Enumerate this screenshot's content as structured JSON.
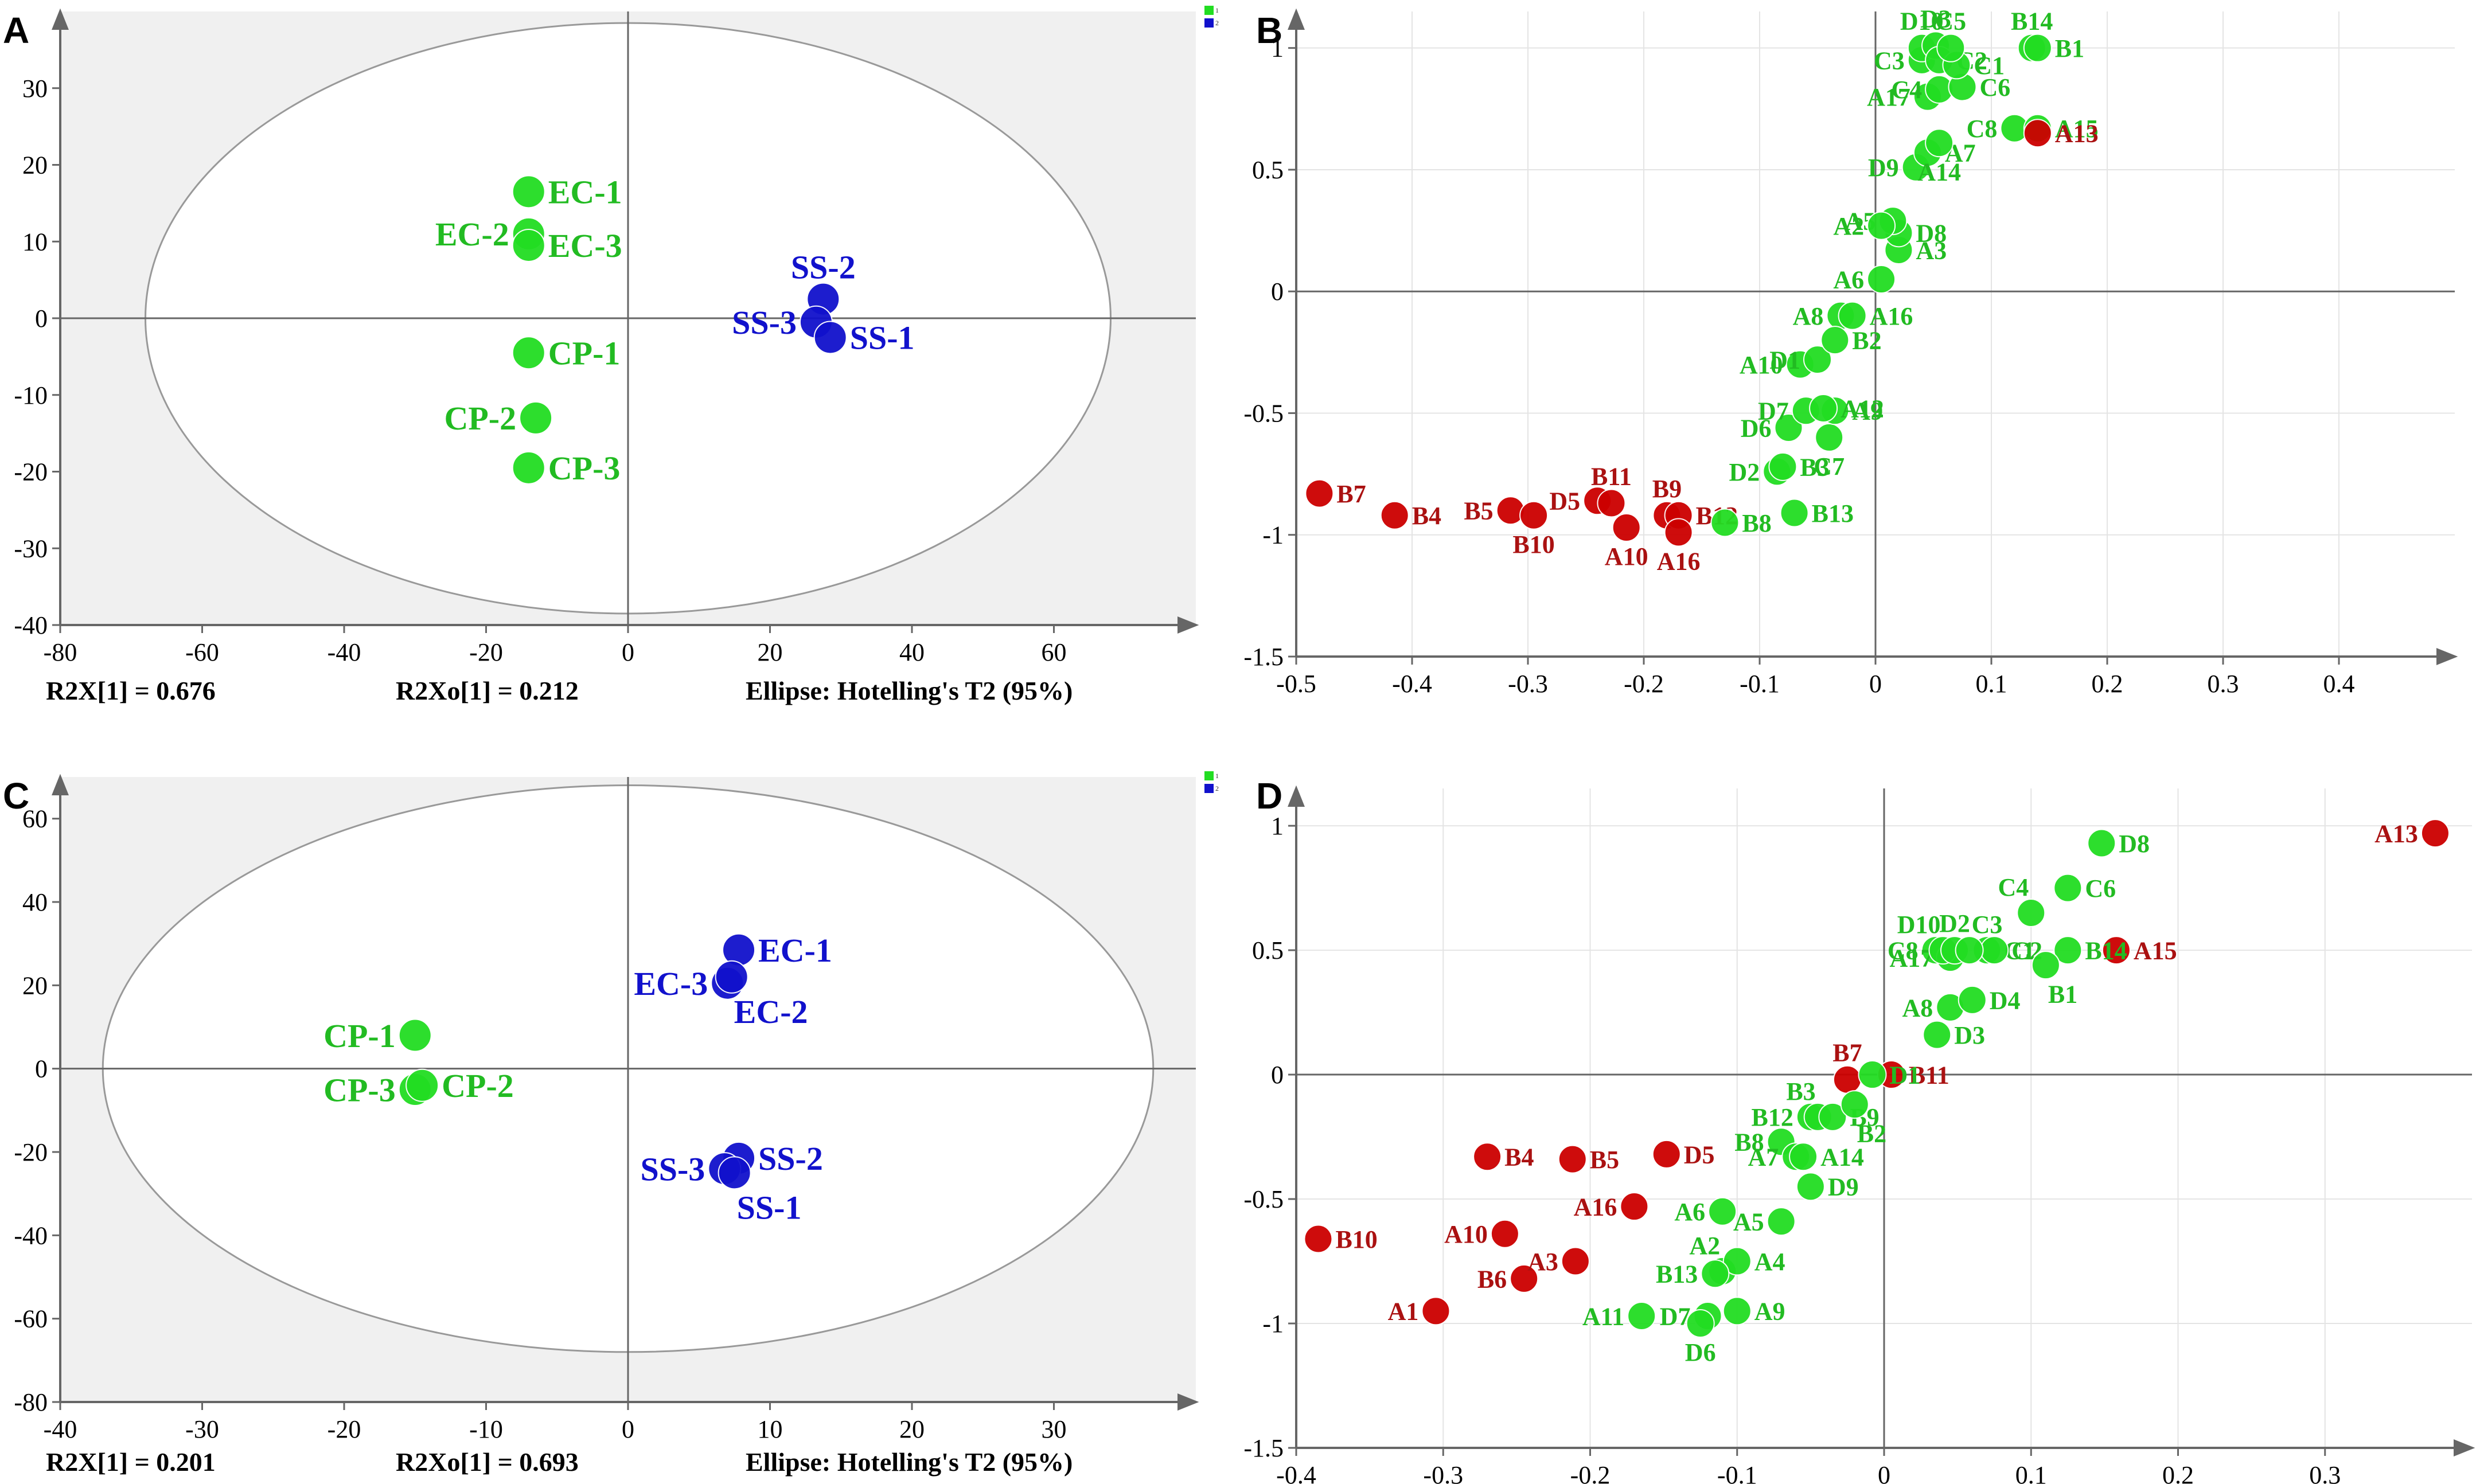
{
  "figure": {
    "panels": [
      "A",
      "B",
      "C",
      "D"
    ]
  },
  "colors": {
    "green": "#22dd22",
    "green_text": "#22bb22",
    "blue": "#1111cc",
    "red": "#cc0000",
    "red_text": "#aa1111",
    "axis": "#808080",
    "plot_bg": "#f0f0f0"
  },
  "chart_data": [
    {
      "panel": "A",
      "type": "scatter",
      "xlim": [
        -80,
        80
      ],
      "ylim": [
        -40,
        40
      ],
      "xticks": [
        -80,
        -60,
        -40,
        -20,
        0,
        20,
        40,
        60
      ],
      "yticks": [
        -40,
        -30,
        -20,
        -10,
        0,
        10,
        20,
        30
      ],
      "ellipse": {
        "cx": 0,
        "cy": 0,
        "rx": 68,
        "ry": 38.5
      },
      "legend": [
        "1",
        "2"
      ],
      "footer": [
        "R2X[1] = 0.676",
        "R2Xo[1] = 0.212",
        "Ellipse: Hotelling's T2 (95%)"
      ],
      "points": [
        {
          "label": "EC-1",
          "x": -14,
          "y": 16.5,
          "color": "green",
          "pos": "right"
        },
        {
          "label": "EC-2",
          "x": -14,
          "y": 11,
          "color": "green",
          "pos": "left"
        },
        {
          "label": "EC-3",
          "x": -14,
          "y": 9.5,
          "color": "green",
          "pos": "right"
        },
        {
          "label": "CP-1",
          "x": -14,
          "y": -4.5,
          "color": "green",
          "pos": "right"
        },
        {
          "label": "CP-2",
          "x": -13,
          "y": -13,
          "color": "green",
          "pos": "left"
        },
        {
          "label": "CP-3",
          "x": -14,
          "y": -19.5,
          "color": "green",
          "pos": "right"
        },
        {
          "label": "SS-2",
          "x": 27.5,
          "y": 2.5,
          "color": "blue",
          "pos": "above"
        },
        {
          "label": "SS-3",
          "x": 26.5,
          "y": -0.5,
          "color": "blue",
          "pos": "left"
        },
        {
          "label": "SS-1",
          "x": 28.5,
          "y": -2.5,
          "color": "blue",
          "pos": "right"
        }
      ]
    },
    {
      "panel": "B",
      "type": "scatter",
      "xlim": [
        -0.5,
        0.5
      ],
      "ylim": [
        -1.5,
        1.15
      ],
      "xticks": [
        -0.5,
        -0.4,
        -0.3,
        -0.2,
        -0.1,
        0,
        0.1,
        0.2,
        0.3,
        0.4
      ],
      "xtick_labels": [
        "-0.5",
        "-0.4",
        "-0.3",
        "-0.2",
        "-0.1",
        "0",
        "0.1",
        "0.2",
        "0.3",
        "0.4"
      ],
      "yticks": [
        -1.5,
        -1,
        -0.5,
        0,
        0.5,
        1
      ],
      "ytick_labels": [
        "-1.5",
        "-1",
        "-0.5",
        "0",
        "0.5",
        "1"
      ],
      "points": [
        {
          "label": "B7",
          "x": -0.48,
          "y": -0.83,
          "color": "red",
          "pos": "right"
        },
        {
          "label": "B4",
          "x": -0.415,
          "y": -0.92,
          "color": "red",
          "pos": "right"
        },
        {
          "label": "B5",
          "x": -0.315,
          "y": -0.9,
          "color": "red",
          "pos": "left"
        },
        {
          "label": "B10",
          "x": -0.295,
          "y": -0.92,
          "color": "red",
          "pos": "below"
        },
        {
          "label": "D5",
          "x": -0.24,
          "y": -0.86,
          "color": "red",
          "pos": "left"
        },
        {
          "label": "B11",
          "x": -0.228,
          "y": -0.87,
          "color": "red",
          "pos": "above"
        },
        {
          "label": "A10",
          "x": -0.215,
          "y": -0.97,
          "color": "red",
          "pos": "below"
        },
        {
          "label": "B9",
          "x": -0.18,
          "y": -0.92,
          "color": "red",
          "pos": "above"
        },
        {
          "label": "B12",
          "x": -0.17,
          "y": -0.92,
          "color": "red",
          "pos": "right"
        },
        {
          "label": "A16",
          "x": -0.17,
          "y": -0.99,
          "color": "red",
          "pos": "below"
        },
        {
          "label": "B8",
          "x": -0.13,
          "y": -0.95,
          "color": "green",
          "pos": "right"
        },
        {
          "label": "B13",
          "x": -0.07,
          "y": -0.91,
          "color": "green",
          "pos": "right"
        },
        {
          "label": "D2",
          "x": -0.085,
          "y": -0.74,
          "color": "green",
          "pos": "left"
        },
        {
          "label": "B3",
          "x": -0.08,
          "y": -0.72,
          "color": "green",
          "pos": "right"
        },
        {
          "label": "C7",
          "x": -0.04,
          "y": -0.6,
          "color": "green",
          "pos": "below"
        },
        {
          "label": "D6",
          "x": -0.075,
          "y": -0.56,
          "color": "green",
          "pos": "left"
        },
        {
          "label": "D7",
          "x": -0.06,
          "y": -0.49,
          "color": "green",
          "pos": "left"
        },
        {
          "label": "A9",
          "x": -0.035,
          "y": -0.49,
          "color": "green",
          "pos": "right"
        },
        {
          "label": "A12",
          "x": -0.045,
          "y": -0.48,
          "color": "green",
          "pos": "right"
        },
        {
          "label": "A10",
          "x": -0.065,
          "y": -0.3,
          "color": "green",
          "pos": "left"
        },
        {
          "label": "D1",
          "x": -0.05,
          "y": -0.28,
          "color": "green",
          "pos": "left"
        },
        {
          "label": "A8",
          "x": -0.03,
          "y": -0.1,
          "color": "green",
          "pos": "left"
        },
        {
          "label": "B2",
          "x": -0.035,
          "y": -0.2,
          "color": "green",
          "pos": "right"
        },
        {
          "label": "A16",
          "x": -0.02,
          "y": -0.1,
          "color": "green",
          "pos": "right"
        },
        {
          "label": "A6",
          "x": 0.005,
          "y": 0.05,
          "color": "green",
          "pos": "left"
        },
        {
          "label": "A3",
          "x": 0.02,
          "y": 0.17,
          "color": "green",
          "pos": "right"
        },
        {
          "label": "D8",
          "x": 0.02,
          "y": 0.24,
          "color": "green",
          "pos": "right"
        },
        {
          "label": "A5",
          "x": 0.015,
          "y": 0.29,
          "color": "green",
          "pos": "left"
        },
        {
          "label": "A2",
          "x": 0.005,
          "y": 0.27,
          "color": "green",
          "pos": "left"
        },
        {
          "label": "D9",
          "x": 0.035,
          "y": 0.51,
          "color": "green",
          "pos": "left"
        },
        {
          "label": "A7",
          "x": 0.045,
          "y": 0.57,
          "color": "green",
          "pos": "right"
        },
        {
          "label": "A14",
          "x": 0.055,
          "y": 0.61,
          "color": "green",
          "pos": "below"
        },
        {
          "label": "A17",
          "x": 0.045,
          "y": 0.8,
          "color": "green",
          "pos": "left"
        },
        {
          "label": "C4",
          "x": 0.055,
          "y": 0.83,
          "color": "green",
          "pos": "left"
        },
        {
          "label": "C6",
          "x": 0.075,
          "y": 0.84,
          "color": "green",
          "pos": "right"
        },
        {
          "label": "C3",
          "x": 0.04,
          "y": 0.95,
          "color": "green",
          "pos": "left"
        },
        {
          "label": "D10",
          "x": 0.04,
          "y": 1.0,
          "color": "green",
          "pos": "above"
        },
        {
          "label": "D3",
          "x": 0.052,
          "y": 1.01,
          "color": "green",
          "pos": "above"
        },
        {
          "label": "C2",
          "x": 0.055,
          "y": 0.95,
          "color": "green",
          "pos": "right"
        },
        {
          "label": "C1",
          "x": 0.07,
          "y": 0.93,
          "color": "green",
          "pos": "right"
        },
        {
          "label": "C5",
          "x": 0.065,
          "y": 1.0,
          "color": "green",
          "pos": "above"
        },
        {
          "label": "B14",
          "x": 0.135,
          "y": 1.0,
          "color": "green",
          "pos": "above"
        },
        {
          "label": "B1",
          "x": 0.14,
          "y": 1.0,
          "color": "green",
          "pos": "right"
        },
        {
          "label": "C8",
          "x": 0.12,
          "y": 0.67,
          "color": "green",
          "pos": "left"
        },
        {
          "label": "A15",
          "x": 0.14,
          "y": 0.67,
          "color": "green",
          "pos": "right"
        },
        {
          "label": "A13",
          "x": 0.14,
          "y": 0.65,
          "color": "red",
          "pos": "right"
        }
      ]
    },
    {
      "panel": "C",
      "type": "scatter",
      "xlim": [
        -40,
        40
      ],
      "ylim": [
        -80,
        70
      ],
      "xticks": [
        -40,
        -30,
        -20,
        -10,
        0,
        10,
        20,
        30
      ],
      "yticks": [
        -80,
        -60,
        -40,
        -20,
        0,
        20,
        40,
        60
      ],
      "ellipse": {
        "cx": 0,
        "cy": 0,
        "rx": 37,
        "ry": 68
      },
      "legend": [
        "1",
        "2"
      ],
      "footer": [
        "R2X[1] = 0.201",
        "R2Xo[1] = 0.693",
        "Ellipse: Hotelling's T2 (95%)"
      ],
      "points": [
        {
          "label": "CP-1",
          "x": -15,
          "y": 8,
          "color": "green",
          "pos": "left"
        },
        {
          "label": "CP-3",
          "x": -15,
          "y": -5,
          "color": "green",
          "pos": "left"
        },
        {
          "label": "CP-2",
          "x": -14.5,
          "y": -4,
          "color": "green",
          "pos": "right"
        },
        {
          "label": "EC-1",
          "x": 7.8,
          "y": 28.5,
          "color": "blue",
          "pos": "right"
        },
        {
          "label": "EC-3",
          "x": 7,
          "y": 20.5,
          "color": "blue",
          "pos": "left"
        },
        {
          "label": "EC-2",
          "x": 7.3,
          "y": 22,
          "color": "blue",
          "pos": "belowright"
        },
        {
          "label": "SS-2",
          "x": 7.8,
          "y": -21.5,
          "color": "blue",
          "pos": "right"
        },
        {
          "label": "SS-3",
          "x": 6.8,
          "y": -24,
          "color": "blue",
          "pos": "left"
        },
        {
          "label": "SS-1",
          "x": 7.5,
          "y": -25,
          "color": "blue",
          "pos": "belowright"
        }
      ]
    },
    {
      "panel": "D",
      "type": "scatter",
      "xlim": [
        -0.4,
        0.4
      ],
      "ylim": [
        -1.5,
        1.15
      ],
      "xticks": [
        -0.4,
        -0.3,
        -0.2,
        -0.1,
        0,
        0.1,
        0.2,
        0.3
      ],
      "xtick_labels": [
        "-0.4",
        "-0.3",
        "-0.2",
        "-0.1",
        "0",
        "0.1",
        "0.2",
        "0.3"
      ],
      "yticks": [
        -1.5,
        -1,
        -0.5,
        0,
        0.5,
        1
      ],
      "ytick_labels": [
        "-1.5",
        "-1",
        "-0.5",
        "0",
        "0.5",
        "1"
      ],
      "points": [
        {
          "label": "B10",
          "x": -0.385,
          "y": -0.66,
          "color": "red",
          "pos": "right"
        },
        {
          "label": "A1",
          "x": -0.305,
          "y": -0.95,
          "color": "red",
          "pos": "left"
        },
        {
          "label": "A10",
          "x": -0.258,
          "y": -0.64,
          "color": "red",
          "pos": "left"
        },
        {
          "label": "B6",
          "x": -0.245,
          "y": -0.82,
          "color": "red",
          "pos": "left"
        },
        {
          "label": "B4",
          "x": -0.27,
          "y": -0.33,
          "color": "red",
          "pos": "right"
        },
        {
          "label": "B5",
          "x": -0.212,
          "y": -0.34,
          "color": "red",
          "pos": "right"
        },
        {
          "label": "A3",
          "x": -0.21,
          "y": -0.75,
          "color": "red",
          "pos": "left"
        },
        {
          "label": "A16",
          "x": -0.17,
          "y": -0.53,
          "color": "red",
          "pos": "left"
        },
        {
          "label": "D5",
          "x": -0.148,
          "y": -0.32,
          "color": "red",
          "pos": "right"
        },
        {
          "label": "B7",
          "x": -0.025,
          "y": -0.02,
          "color": "red",
          "pos": "above"
        },
        {
          "label": "B11",
          "x": 0.005,
          "y": 0.0,
          "color": "red",
          "pos": "right"
        },
        {
          "label": "A13",
          "x": 0.375,
          "y": 0.97,
          "color": "red",
          "pos": "left"
        },
        {
          "label": "A15",
          "x": 0.158,
          "y": 0.5,
          "color": "red",
          "pos": "right"
        },
        {
          "label": "B12",
          "x": -0.05,
          "y": -0.17,
          "color": "green",
          "pos": "left"
        },
        {
          "label": "B3",
          "x": -0.045,
          "y": -0.17,
          "color": "green",
          "pos": "aboveleft"
        },
        {
          "label": "B9",
          "x": -0.035,
          "y": -0.17,
          "color": "green",
          "pos": "right"
        },
        {
          "label": "B2",
          "x": -0.02,
          "y": -0.12,
          "color": "green",
          "pos": "belowright"
        },
        {
          "label": "B8",
          "x": -0.07,
          "y": -0.27,
          "color": "green",
          "pos": "left"
        },
        {
          "label": "A7",
          "x": -0.06,
          "y": -0.33,
          "color": "green",
          "pos": "left"
        },
        {
          "label": "A14",
          "x": -0.055,
          "y": -0.33,
          "color": "green",
          "pos": "right"
        },
        {
          "label": "D9",
          "x": -0.05,
          "y": -0.45,
          "color": "green",
          "pos": "right"
        },
        {
          "label": "A6",
          "x": -0.11,
          "y": -0.55,
          "color": "green",
          "pos": "left"
        },
        {
          "label": "A5",
          "x": -0.07,
          "y": -0.59,
          "color": "green",
          "pos": "left"
        },
        {
          "label": "A2",
          "x": -0.11,
          "y": -0.79,
          "color": "green",
          "pos": "aboveleft"
        },
        {
          "label": "A4",
          "x": -0.1,
          "y": -0.75,
          "color": "green",
          "pos": "right"
        },
        {
          "label": "B13",
          "x": -0.115,
          "y": -0.8,
          "color": "green",
          "pos": "left"
        },
        {
          "label": "A11",
          "x": -0.165,
          "y": -0.97,
          "color": "green",
          "pos": "left"
        },
        {
          "label": "D7",
          "x": -0.12,
          "y": -0.97,
          "color": "green",
          "pos": "left"
        },
        {
          "label": "A9",
          "x": -0.1,
          "y": -0.95,
          "color": "green",
          "pos": "right"
        },
        {
          "label": "D6",
          "x": -0.125,
          "y": -1.0,
          "color": "green",
          "pos": "below"
        },
        {
          "label": "D1",
          "x": -0.008,
          "y": 0.0,
          "color": "green",
          "pos": "right"
        },
        {
          "label": "D3",
          "x": 0.036,
          "y": 0.16,
          "color": "green",
          "pos": "right"
        },
        {
          "label": "A8",
          "x": 0.045,
          "y": 0.27,
          "color": "green",
          "pos": "left"
        },
        {
          "label": "D4",
          "x": 0.06,
          "y": 0.3,
          "color": "green",
          "pos": "right"
        },
        {
          "label": "C8",
          "x": 0.035,
          "y": 0.5,
          "color": "green",
          "pos": "left"
        },
        {
          "label": "A17",
          "x": 0.045,
          "y": 0.47,
          "color": "green",
          "pos": "left"
        },
        {
          "label": "C1",
          "x": 0.07,
          "y": 0.5,
          "color": "green",
          "pos": "right"
        },
        {
          "label": "C2",
          "x": 0.075,
          "y": 0.5,
          "color": "green",
          "pos": "right"
        },
        {
          "label": "D10",
          "x": 0.04,
          "y": 0.5,
          "color": "green",
          "pos": "aboveleft"
        },
        {
          "label": "D2",
          "x": 0.048,
          "y": 0.5,
          "color": "green",
          "pos": "above"
        },
        {
          "label": "C3",
          "x": 0.058,
          "y": 0.5,
          "color": "green",
          "pos": "aboveright"
        },
        {
          "label": "C4",
          "x": 0.1,
          "y": 0.65,
          "color": "green",
          "pos": "aboveleft"
        },
        {
          "label": "C6",
          "x": 0.125,
          "y": 0.75,
          "color": "green",
          "pos": "right"
        },
        {
          "label": "D8",
          "x": 0.148,
          "y": 0.93,
          "color": "green",
          "pos": "right"
        },
        {
          "label": "B14",
          "x": 0.125,
          "y": 0.5,
          "color": "green",
          "pos": "right"
        },
        {
          "label": "B1",
          "x": 0.11,
          "y": 0.44,
          "color": "green",
          "pos": "belowright"
        }
      ]
    }
  ]
}
